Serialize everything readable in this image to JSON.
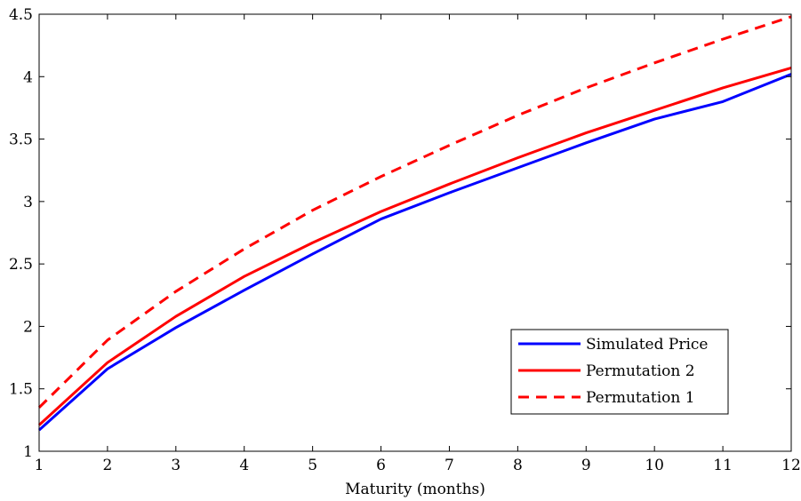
{
  "chart_data": {
    "type": "line",
    "title": "",
    "xlabel": "Maturity (months)",
    "ylabel": "",
    "xlim": [
      1,
      12
    ],
    "ylim": [
      1,
      4.5
    ],
    "x": [
      1,
      2,
      3,
      4,
      5,
      6,
      7,
      8,
      9,
      10,
      11,
      12
    ],
    "xticks": [
      "1",
      "2",
      "3",
      "4",
      "5",
      "6",
      "7",
      "8",
      "9",
      "10",
      "11",
      "12"
    ],
    "yticks": [
      "1",
      "1.5",
      "2",
      "2.5",
      "3",
      "3.5",
      "4",
      "4.5"
    ],
    "grid": false,
    "legend_position": "bottom-right",
    "series": [
      {
        "name": "Simulated Price",
        "color": "#0000ff",
        "dash": "solid",
        "values": [
          1.17,
          1.66,
          1.99,
          2.29,
          2.58,
          2.86,
          3.07,
          3.27,
          3.47,
          3.66,
          3.8,
          4.02
        ]
      },
      {
        "name": "Permutation 2",
        "color": "#ff0000",
        "dash": "solid",
        "values": [
          1.21,
          1.71,
          2.08,
          2.4,
          2.67,
          2.92,
          3.14,
          3.35,
          3.55,
          3.73,
          3.91,
          4.07
        ]
      },
      {
        "name": "Permutation 1",
        "color": "#ff0000",
        "dash": "dashed",
        "values": [
          1.35,
          1.89,
          2.28,
          2.62,
          2.93,
          3.2,
          3.45,
          3.69,
          3.91,
          4.11,
          4.3,
          4.48
        ]
      }
    ]
  }
}
